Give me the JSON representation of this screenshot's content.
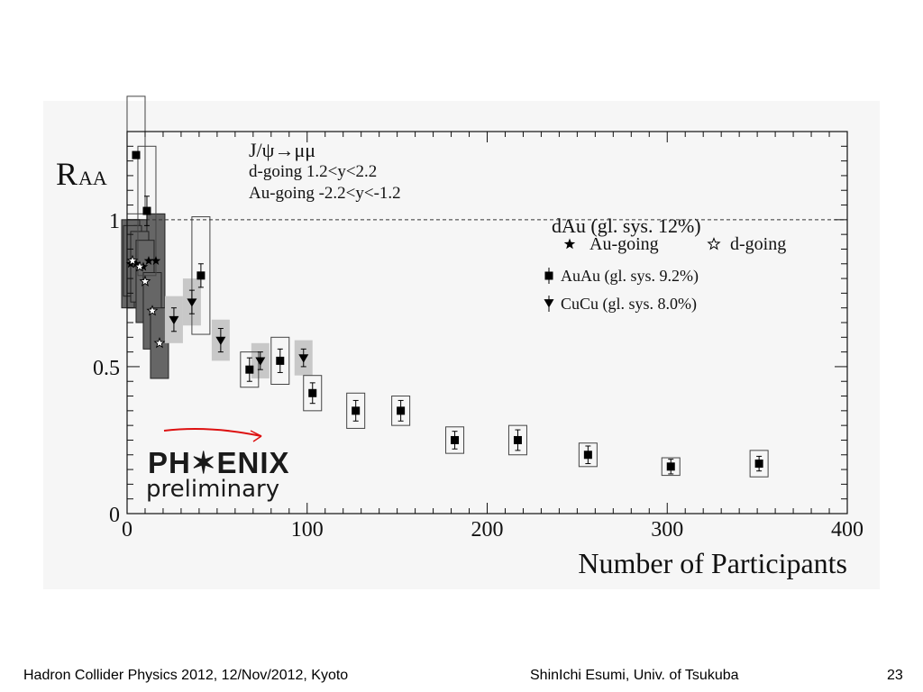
{
  "footer": {
    "left": "Hadron Collider Physics 2012, 12/Nov/2012, Kyoto",
    "center": "ShinIchi Esumi, Univ. of Tsukuba",
    "page": "23"
  },
  "logo": {
    "word": "PH✶ENIX",
    "sub": "preliminary"
  },
  "chart_data": {
    "type": "scatter",
    "xlabel": "Number of Participants",
    "ylabel": "R_AA",
    "xlim": [
      0,
      400
    ],
    "ylim": [
      0,
      1.3
    ],
    "x_ticks": [
      "0",
      "100",
      "200",
      "300",
      "400"
    ],
    "y_ticks": [
      "0",
      "0.5",
      "1"
    ],
    "reference_line": 1,
    "annotations": [
      "J/ψ→μμ",
      "d-going 1.2<y<2.2",
      "Au-going -2.2<y<-1.2"
    ],
    "legend": {
      "group_title": "dAu (gl. sys. 12%)",
      "entries": [
        "Au-going",
        "d-going",
        "AuAu (gl. sys. 9.2%)",
        "CuCu (gl. sys. 8.0%)"
      ],
      "placement": "top-right"
    },
    "colors": {
      "dAu_sys": "#666666",
      "CuCu_sys": "#c8c8c8",
      "markers": "#000000"
    },
    "series": [
      {
        "name": "AuAu (gl. sys. 9.2%)",
        "marker": "square",
        "points": [
          {
            "x": 5,
            "y": 1.22,
            "err": 0.0,
            "sys": 0.2
          },
          {
            "x": 11,
            "y": 1.03,
            "err": 0.05,
            "sys": 0.22
          },
          {
            "x": 41,
            "y": 0.81,
            "err": 0.04,
            "sys": 0.2
          },
          {
            "x": 68,
            "y": 0.49,
            "err": 0.04,
            "sys": 0.06
          },
          {
            "x": 85,
            "y": 0.52,
            "err": 0.04,
            "sys": 0.08
          },
          {
            "x": 103,
            "y": 0.41,
            "err": 0.035,
            "sys": 0.06
          },
          {
            "x": 127,
            "y": 0.35,
            "err": 0.035,
            "sys": 0.06
          },
          {
            "x": 152,
            "y": 0.35,
            "err": 0.035,
            "sys": 0.05
          },
          {
            "x": 182,
            "y": 0.25,
            "err": 0.03,
            "sys": 0.045
          },
          {
            "x": 217,
            "y": 0.25,
            "err": 0.035,
            "sys": 0.05
          },
          {
            "x": 256,
            "y": 0.2,
            "err": 0.03,
            "sys": 0.04
          },
          {
            "x": 302,
            "y": 0.16,
            "err": 0.025,
            "sys": 0.03
          },
          {
            "x": 351,
            "y": 0.17,
            "err": 0.025,
            "sys": 0.045
          }
        ]
      },
      {
        "name": "CuCu (gl. sys. 8.0%)",
        "marker": "triangle-down",
        "points": [
          {
            "x": 26,
            "y": 0.66,
            "err": 0.04,
            "sys": 0.08
          },
          {
            "x": 36,
            "y": 0.72,
            "err": 0.04,
            "sys": 0.08
          },
          {
            "x": 52,
            "y": 0.59,
            "err": 0.04,
            "sys": 0.07
          },
          {
            "x": 74,
            "y": 0.52,
            "err": 0.03,
            "sys": 0.06
          },
          {
            "x": 98,
            "y": 0.53,
            "err": 0.03,
            "sys": 0.06
          }
        ]
      },
      {
        "name": "Au-going",
        "marker": "star-filled",
        "points": [
          {
            "x": 2,
            "y": 0.85,
            "sys": 0.15
          },
          {
            "x": 5,
            "y": 0.85,
            "sys": 0.15
          },
          {
            "x": 9,
            "y": 0.84,
            "sys": 0.14
          },
          {
            "x": 12,
            "y": 0.86,
            "sys": 0.14
          },
          {
            "x": 16,
            "y": 0.86,
            "sys": 0.16
          }
        ]
      },
      {
        "name": "d-going",
        "marker": "star-open",
        "points": [
          {
            "x": 3,
            "y": 0.86,
            "sys": 0.12
          },
          {
            "x": 7,
            "y": 0.84,
            "sys": 0.12
          },
          {
            "x": 10,
            "y": 0.79,
            "sys": 0.14
          },
          {
            "x": 14,
            "y": 0.69,
            "sys": 0.13
          },
          {
            "x": 18,
            "y": 0.58,
            "sys": 0.12
          }
        ]
      }
    ]
  }
}
